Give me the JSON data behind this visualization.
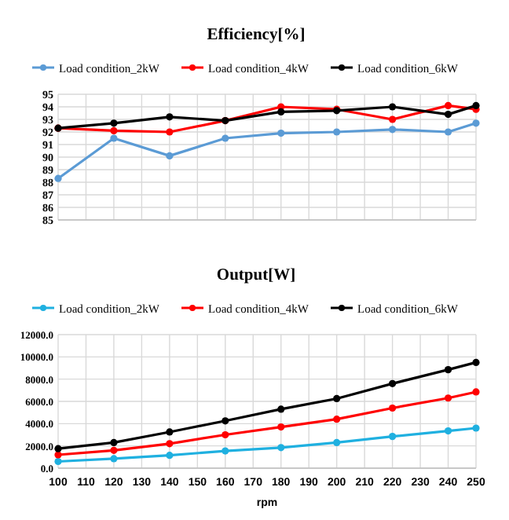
{
  "chart_data": [
    {
      "type": "line",
      "title": "Efficiency[%]",
      "x": [
        100,
        120,
        140,
        160,
        180,
        200,
        220,
        240,
        250
      ],
      "xlim": [
        100,
        250
      ],
      "xticks": [
        {
          "value": 100,
          "label": null
        },
        {
          "value": 110,
          "label": null
        },
        {
          "value": 120,
          "label": null
        },
        {
          "value": 130,
          "label": null
        },
        {
          "value": 140,
          "label": null
        },
        {
          "value": 150,
          "label": null
        },
        {
          "value": 160,
          "label": null
        },
        {
          "value": 170,
          "label": null
        },
        {
          "value": 180,
          "label": null
        },
        {
          "value": 190,
          "label": null
        },
        {
          "value": 200,
          "label": null
        },
        {
          "value": 210,
          "label": null
        },
        {
          "value": 220,
          "label": null
        },
        {
          "value": 230,
          "label": null
        },
        {
          "value": 240,
          "label": null
        },
        {
          "value": 250,
          "label": null
        }
      ],
      "ylim": [
        85,
        95
      ],
      "yticks": [
        85,
        86,
        87,
        88,
        89,
        90,
        91,
        92,
        93,
        94,
        95
      ],
      "tick_labels": "y",
      "grid": true,
      "legend": "top",
      "marker": "circle",
      "series": [
        {
          "name": "Load condition_2kW",
          "color": "#5b9bd5",
          "values": [
            88.3,
            91.5,
            90.1,
            91.5,
            91.9,
            92.0,
            92.2,
            92.0,
            92.7
          ]
        },
        {
          "name": "Load condition_4kW",
          "color": "#ff0000",
          "values": [
            92.3,
            92.1,
            92.0,
            92.9,
            94.0,
            93.8,
            93.0,
            94.1,
            93.8
          ]
        },
        {
          "name": "Load condition_6kW",
          "color": "#000000",
          "values": [
            92.3,
            92.7,
            93.2,
            92.9,
            93.6,
            93.7,
            94.0,
            93.4,
            94.1
          ]
        }
      ]
    },
    {
      "type": "line",
      "title": "Output[W]",
      "xlabel": "rpm",
      "x": [
        100,
        120,
        140,
        160,
        180,
        200,
        220,
        240,
        250
      ],
      "xlim": [
        100,
        250
      ],
      "xticks": [
        100,
        110,
        120,
        130,
        140,
        150,
        160,
        170,
        180,
        190,
        200,
        210,
        220,
        230,
        240,
        250
      ],
      "ylim": [
        0,
        12000
      ],
      "yticks": [
        {
          "value": 0,
          "label": "0.0"
        },
        {
          "value": 2000,
          "label": "2000.0"
        },
        {
          "value": 4000,
          "label": "4000.0"
        },
        {
          "value": 6000,
          "label": "6000.0"
        },
        {
          "value": 8000,
          "label": "8000.0"
        },
        {
          "value": 10000,
          "label": "10000.0"
        },
        {
          "value": 12000,
          "label": "12000.0"
        }
      ],
      "grid": true,
      "legend": "top",
      "marker": "circle",
      "series": [
        {
          "name": "Load condition_2kW",
          "color": "#1fb0e0",
          "values": [
            600,
            850,
            1150,
            1550,
            1850,
            2300,
            2850,
            3350,
            3600
          ]
        },
        {
          "name": "Load condition_4kW",
          "color": "#ff0000",
          "values": [
            1200,
            1600,
            2200,
            3000,
            3700,
            4400,
            5400,
            6300,
            6850
          ]
        },
        {
          "name": "Load condition_6kW",
          "color": "#000000",
          "values": [
            1750,
            2300,
            3250,
            4250,
            5300,
            6250,
            7600,
            8850,
            9500
          ]
        }
      ]
    }
  ]
}
